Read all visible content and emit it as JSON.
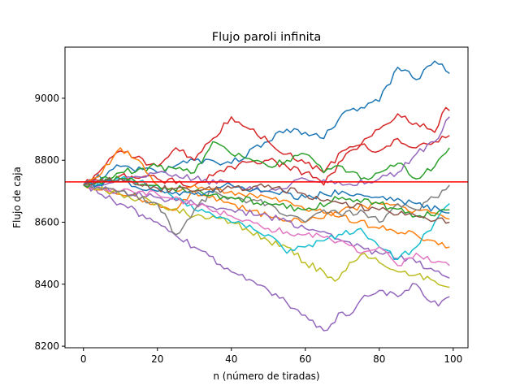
{
  "chart_data": {
    "type": "line",
    "title": "Flujo paroli infinita",
    "xlabel": "n (número de tiradas)",
    "ylabel": "Flujo de caja",
    "xlim": [
      -5,
      104
    ],
    "ylim": [
      8195,
      9165
    ],
    "xticks": [
      0,
      20,
      40,
      60,
      80,
      100
    ],
    "yticks": [
      8200,
      8400,
      8600,
      8800,
      9000
    ],
    "grid": false,
    "legend": "none",
    "reference_line": {
      "y": 8730,
      "color": "#ff0000"
    },
    "x": {
      "start": 0,
      "end": 99
    },
    "series": [
      {
        "color": "#1f77b4",
        "points": [
          [
            0,
            8720
          ],
          [
            10,
            8780
          ],
          [
            20,
            8760
          ],
          [
            30,
            8800
          ],
          [
            40,
            8790
          ],
          [
            50,
            8860
          ],
          [
            55,
            8900
          ],
          [
            60,
            8890
          ],
          [
            65,
            8870
          ],
          [
            70,
            8950
          ],
          [
            75,
            8970
          ],
          [
            80,
            8990
          ],
          [
            85,
            9100
          ],
          [
            90,
            9060
          ],
          [
            95,
            9120
          ],
          [
            99,
            9080
          ]
        ]
      },
      {
        "color": "#d62728",
        "points": [
          [
            0,
            8720
          ],
          [
            10,
            8830
          ],
          [
            20,
            8780
          ],
          [
            25,
            8840
          ],
          [
            30,
            8800
          ],
          [
            40,
            8940
          ],
          [
            45,
            8900
          ],
          [
            50,
            8860
          ],
          [
            55,
            8820
          ],
          [
            60,
            8790
          ],
          [
            65,
            8760
          ],
          [
            70,
            8830
          ],
          [
            75,
            8850
          ],
          [
            80,
            8900
          ],
          [
            85,
            8950
          ],
          [
            90,
            8920
          ],
          [
            95,
            8890
          ],
          [
            98,
            8970
          ],
          [
            99,
            8960
          ]
        ]
      },
      {
        "color": "#d62728",
        "points": [
          [
            0,
            8720
          ],
          [
            10,
            8750
          ],
          [
            20,
            8740
          ],
          [
            30,
            8720
          ],
          [
            40,
            8780
          ],
          [
            50,
            8800
          ],
          [
            60,
            8760
          ],
          [
            65,
            8720
          ],
          [
            70,
            8800
          ],
          [
            75,
            8850
          ],
          [
            80,
            8830
          ],
          [
            85,
            8870
          ],
          [
            90,
            8840
          ],
          [
            95,
            8860
          ],
          [
            99,
            8880
          ]
        ]
      },
      {
        "color": "#2ca02c",
        "points": [
          [
            0,
            8720
          ],
          [
            10,
            8760
          ],
          [
            20,
            8780
          ],
          [
            30,
            8760
          ],
          [
            35,
            8860
          ],
          [
            40,
            8820
          ],
          [
            50,
            8780
          ],
          [
            55,
            8800
          ],
          [
            60,
            8820
          ],
          [
            65,
            8760
          ],
          [
            70,
            8780
          ],
          [
            75,
            8740
          ],
          [
            80,
            8760
          ],
          [
            85,
            8790
          ],
          [
            90,
            8740
          ],
          [
            95,
            8780
          ],
          [
            99,
            8840
          ]
        ]
      },
      {
        "color": "#ff7f0e",
        "points": [
          [
            0,
            8720
          ],
          [
            5,
            8760
          ],
          [
            10,
            8840
          ],
          [
            15,
            8800
          ],
          [
            20,
            8720
          ],
          [
            25,
            8700
          ],
          [
            30,
            8720
          ],
          [
            40,
            8700
          ],
          [
            50,
            8680
          ],
          [
            60,
            8640
          ],
          [
            70,
            8620
          ],
          [
            80,
            8580
          ],
          [
            90,
            8560
          ],
          [
            99,
            8520
          ]
        ]
      },
      {
        "color": "#ff7f0e",
        "points": [
          [
            0,
            8720
          ],
          [
            10,
            8690
          ],
          [
            20,
            8660
          ],
          [
            25,
            8640
          ],
          [
            30,
            8700
          ],
          [
            40,
            8660
          ],
          [
            50,
            8620
          ],
          [
            60,
            8600
          ],
          [
            70,
            8640
          ],
          [
            80,
            8660
          ],
          [
            90,
            8640
          ],
          [
            99,
            8610
          ]
        ]
      },
      {
        "color": "#9467bd",
        "points": [
          [
            0,
            8720
          ],
          [
            10,
            8660
          ],
          [
            20,
            8600
          ],
          [
            30,
            8520
          ],
          [
            40,
            8440
          ],
          [
            50,
            8380
          ],
          [
            55,
            8340
          ],
          [
            60,
            8300
          ],
          [
            65,
            8250
          ],
          [
            70,
            8310
          ],
          [
            72,
            8300
          ],
          [
            75,
            8350
          ],
          [
            80,
            8380
          ],
          [
            85,
            8360
          ],
          [
            90,
            8400
          ],
          [
            93,
            8350
          ],
          [
            96,
            8330
          ],
          [
            99,
            8360
          ]
        ]
      },
      {
        "color": "#9467bd",
        "points": [
          [
            0,
            8720
          ],
          [
            10,
            8700
          ],
          [
            20,
            8680
          ],
          [
            30,
            8660
          ],
          [
            40,
            8640
          ],
          [
            50,
            8620
          ],
          [
            60,
            8580
          ],
          [
            70,
            8540
          ],
          [
            80,
            8500
          ],
          [
            90,
            8470
          ],
          [
            99,
            8420
          ]
        ]
      },
      {
        "color": "#9467bd",
        "points": [
          [
            0,
            8720
          ],
          [
            10,
            8740
          ],
          [
            20,
            8760
          ],
          [
            30,
            8740
          ],
          [
            40,
            8720
          ],
          [
            50,
            8700
          ],
          [
            60,
            8740
          ],
          [
            70,
            8720
          ],
          [
            80,
            8740
          ],
          [
            85,
            8760
          ],
          [
            90,
            8820
          ],
          [
            95,
            8860
          ],
          [
            99,
            8940
          ]
        ]
      },
      {
        "color": "#bcbd22",
        "points": [
          [
            0,
            8720
          ],
          [
            10,
            8690
          ],
          [
            20,
            8660
          ],
          [
            30,
            8620
          ],
          [
            40,
            8600
          ],
          [
            50,
            8540
          ],
          [
            55,
            8520
          ],
          [
            60,
            8470
          ],
          [
            65,
            8440
          ],
          [
            68,
            8410
          ],
          [
            72,
            8470
          ],
          [
            76,
            8500
          ],
          [
            80,
            8470
          ],
          [
            85,
            8440
          ],
          [
            90,
            8430
          ],
          [
            95,
            8410
          ],
          [
            99,
            8390
          ]
        ]
      },
      {
        "color": "#17becf",
        "points": [
          [
            0,
            8720
          ],
          [
            10,
            8740
          ],
          [
            20,
            8720
          ],
          [
            30,
            8640
          ],
          [
            40,
            8600
          ],
          [
            50,
            8560
          ],
          [
            55,
            8500
          ],
          [
            60,
            8520
          ],
          [
            65,
            8540
          ],
          [
            70,
            8560
          ],
          [
            75,
            8580
          ],
          [
            80,
            8520
          ],
          [
            85,
            8480
          ],
          [
            90,
            8520
          ],
          [
            95,
            8600
          ],
          [
            99,
            8660
          ]
        ]
      },
      {
        "color": "#e377c2",
        "points": [
          [
            0,
            8720
          ],
          [
            10,
            8700
          ],
          [
            20,
            8690
          ],
          [
            30,
            8660
          ],
          [
            40,
            8620
          ],
          [
            50,
            8580
          ],
          [
            60,
            8560
          ],
          [
            70,
            8540
          ],
          [
            75,
            8500
          ],
          [
            80,
            8520
          ],
          [
            85,
            8460
          ],
          [
            90,
            8500
          ],
          [
            95,
            8470
          ],
          [
            99,
            8460
          ]
        ]
      },
      {
        "color": "#7f7f7f",
        "points": [
          [
            0,
            8720
          ],
          [
            10,
            8700
          ],
          [
            20,
            8660
          ],
          [
            25,
            8560
          ],
          [
            30,
            8640
          ],
          [
            35,
            8700
          ],
          [
            40,
            8680
          ],
          [
            50,
            8660
          ],
          [
            55,
            8620
          ],
          [
            60,
            8600
          ],
          [
            65,
            8640
          ],
          [
            70,
            8620
          ],
          [
            75,
            8640
          ],
          [
            80,
            8600
          ],
          [
            85,
            8660
          ],
          [
            90,
            8640
          ],
          [
            95,
            8680
          ],
          [
            99,
            8720
          ]
        ]
      },
      {
        "color": "#2ca02c",
        "points": [
          [
            0,
            8720
          ],
          [
            10,
            8740
          ],
          [
            20,
            8720
          ],
          [
            30,
            8700
          ],
          [
            40,
            8680
          ],
          [
            50,
            8660
          ],
          [
            60,
            8640
          ],
          [
            70,
            8680
          ],
          [
            80,
            8660
          ],
          [
            90,
            8620
          ],
          [
            99,
            8640
          ]
        ]
      },
      {
        "color": "#1f77b4",
        "points": [
          [
            0,
            8720
          ],
          [
            10,
            8730
          ],
          [
            20,
            8700
          ],
          [
            30,
            8690
          ],
          [
            40,
            8720
          ],
          [
            50,
            8700
          ],
          [
            60,
            8680
          ],
          [
            70,
            8700
          ],
          [
            80,
            8680
          ],
          [
            90,
            8660
          ],
          [
            99,
            8630
          ]
        ]
      },
      {
        "color": "#8c564b",
        "points": [
          [
            0,
            8720
          ],
          [
            10,
            8740
          ],
          [
            20,
            8710
          ],
          [
            30,
            8700
          ],
          [
            40,
            8710
          ],
          [
            50,
            8720
          ],
          [
            60,
            8690
          ],
          [
            70,
            8660
          ],
          [
            80,
            8640
          ],
          [
            90,
            8620
          ],
          [
            99,
            8600
          ]
        ]
      }
    ]
  }
}
